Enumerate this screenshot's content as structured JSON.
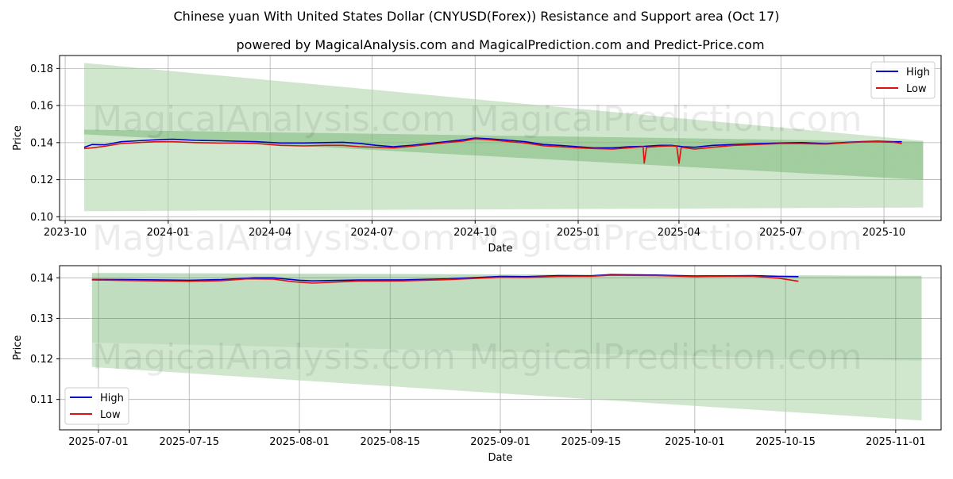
{
  "title": "Chinese yuan With United States Dollar (CNYUSD(Forex)) Resistance and Support area (Oct 17)",
  "subtitle": "powered by MagicalAnalysis.com and MagicalPrediction.com and Predict-Price.com",
  "watermarks": [
    "MagicalAnalysis.com",
    "MagicalPrediction.com"
  ],
  "colors": {
    "high": "#0000cc",
    "low": "#dd1111",
    "band": "#4a9e48",
    "outer": "#a9d3a5"
  },
  "chart_data": [
    {
      "type": "line",
      "xlabel": "Date",
      "ylabel": "Price",
      "legend_position": "top-right",
      "grid": true,
      "x_range": [
        "2023-09-26",
        "2025-11-21"
      ],
      "ylim": [
        0.098,
        0.187
      ],
      "x_ticks": [
        {
          "date": "2023-10-01",
          "label": "2023-10"
        },
        {
          "date": "2024-01-01",
          "label": "2024-01"
        },
        {
          "date": "2024-04-01",
          "label": "2024-04"
        },
        {
          "date": "2024-07-01",
          "label": "2024-07"
        },
        {
          "date": "2024-10-01",
          "label": "2024-10"
        },
        {
          "date": "2025-01-01",
          "label": "2025-01"
        },
        {
          "date": "2025-04-01",
          "label": "2025-04"
        },
        {
          "date": "2025-07-01",
          "label": "2025-07"
        },
        {
          "date": "2025-10-01",
          "label": "2025-10"
        }
      ],
      "y_ticks": [
        0.1,
        0.12,
        0.14,
        0.16,
        0.18
      ],
      "y_tick_labels": [
        "0.10",
        "0.12",
        "0.14",
        "0.16",
        "0.18"
      ],
      "series": [
        {
          "name": "High",
          "color": "#0000cc",
          "dates": [
            "2023-10-18",
            "2023-10-25",
            "2023-11-05",
            "2023-11-20",
            "2023-12-05",
            "2023-12-20",
            "2024-01-05",
            "2024-01-25",
            "2024-02-15",
            "2024-03-01",
            "2024-03-20",
            "2024-04-10",
            "2024-05-01",
            "2024-05-20",
            "2024-06-05",
            "2024-06-20",
            "2024-07-05",
            "2024-07-20",
            "2024-08-05",
            "2024-08-20",
            "2024-09-05",
            "2024-09-20",
            "2024-10-01",
            "2024-10-15",
            "2024-11-01",
            "2024-11-15",
            "2024-12-01",
            "2024-12-15",
            "2025-01-01",
            "2025-01-15",
            "2025-02-01",
            "2025-02-15",
            "2025-03-01",
            "2025-03-15",
            "2025-03-25",
            "2025-04-05",
            "2025-04-15",
            "2025-05-01",
            "2025-05-20",
            "2025-06-10",
            "2025-07-01",
            "2025-07-20",
            "2025-08-10",
            "2025-08-25",
            "2025-09-10",
            "2025-09-25",
            "2025-10-10",
            "2025-10-17"
          ],
          "values": [
            0.1375,
            0.139,
            0.1388,
            0.1405,
            0.141,
            0.1415,
            0.1418,
            0.1412,
            0.141,
            0.1408,
            0.1405,
            0.1398,
            0.1398,
            0.14,
            0.1402,
            0.1396,
            0.1385,
            0.1378,
            0.1385,
            0.1395,
            0.1405,
            0.1415,
            0.1425,
            0.142,
            0.1412,
            0.1405,
            0.139,
            0.1385,
            0.1378,
            0.1372,
            0.1372,
            0.1378,
            0.138,
            0.1385,
            0.1385,
            0.1378,
            0.1375,
            0.1385,
            0.139,
            0.1395,
            0.1398,
            0.14,
            0.1395,
            0.14,
            0.1405,
            0.1408,
            0.1405,
            0.1405
          ]
        },
        {
          "name": "Low",
          "color": "#dd1111",
          "dates": [
            "2023-10-18",
            "2023-10-25",
            "2023-11-05",
            "2023-11-20",
            "2023-12-05",
            "2023-12-20",
            "2024-01-05",
            "2024-01-25",
            "2024-02-15",
            "2024-03-01",
            "2024-03-20",
            "2024-04-10",
            "2024-05-01",
            "2024-05-20",
            "2024-06-05",
            "2024-06-20",
            "2024-07-05",
            "2024-07-20",
            "2024-08-05",
            "2024-08-20",
            "2024-09-05",
            "2024-09-20",
            "2024-10-01",
            "2024-10-15",
            "2024-11-01",
            "2024-11-15",
            "2024-12-01",
            "2024-12-15",
            "2025-01-01",
            "2025-01-15",
            "2025-02-01",
            "2025-02-15",
            "2025-02-28",
            "2025-03-01",
            "2025-03-03",
            "2025-03-15",
            "2025-03-25",
            "2025-03-30",
            "2025-04-01",
            "2025-04-03",
            "2025-04-15",
            "2025-05-01",
            "2025-05-20",
            "2025-06-10",
            "2025-07-01",
            "2025-07-20",
            "2025-08-10",
            "2025-08-25",
            "2025-09-10",
            "2025-09-25",
            "2025-10-10",
            "2025-10-17"
          ],
          "values": [
            0.1368,
            0.1372,
            0.138,
            0.1395,
            0.14,
            0.1405,
            0.1405,
            0.14,
            0.1398,
            0.1398,
            0.1395,
            0.1385,
            0.1382,
            0.1385,
            0.1385,
            0.1378,
            0.1375,
            0.1372,
            0.138,
            0.139,
            0.14,
            0.1408,
            0.142,
            0.1415,
            0.1405,
            0.1398,
            0.1383,
            0.1378,
            0.1372,
            0.1368,
            0.1365,
            0.1372,
            0.1378,
            0.129,
            0.1375,
            0.138,
            0.1382,
            0.138,
            0.1288,
            0.1375,
            0.1365,
            0.1375,
            0.1385,
            0.139,
            0.1395,
            0.1395,
            0.1392,
            0.1398,
            0.1403,
            0.1405,
            0.1402,
            0.1395
          ]
        }
      ],
      "support_resistance_bands": {
        "start_date": "2023-10-18",
        "end_date": "2025-11-05",
        "dark": {
          "start": [
            0.1445,
            0.147
          ],
          "end": [
            0.12,
            0.1405
          ]
        },
        "light": {
          "start": [
            0.103,
            0.183
          ],
          "end": [
            0.105,
            0.141
          ]
        }
      }
    },
    {
      "type": "line",
      "xlabel": "Date",
      "ylabel": "Price",
      "legend_position": "bottom-left",
      "grid": true,
      "x_range": [
        "2025-06-25",
        "2025-11-08"
      ],
      "ylim": [
        0.1025,
        0.143
      ],
      "x_ticks": [
        {
          "date": "2025-07-01",
          "label": "2025-07-01"
        },
        {
          "date": "2025-07-15",
          "label": "2025-07-15"
        },
        {
          "date": "2025-08-01",
          "label": "2025-08-01"
        },
        {
          "date": "2025-08-15",
          "label": "2025-08-15"
        },
        {
          "date": "2025-09-01",
          "label": "2025-09-01"
        },
        {
          "date": "2025-09-15",
          "label": "2025-09-15"
        },
        {
          "date": "2025-10-01",
          "label": "2025-10-01"
        },
        {
          "date": "2025-10-15",
          "label": "2025-10-15"
        },
        {
          "date": "2025-11-01",
          "label": "2025-11-01"
        }
      ],
      "y_ticks": [
        0.11,
        0.12,
        0.13,
        0.14
      ],
      "y_tick_labels": [
        "0.11",
        "0.12",
        "0.13",
        "0.14"
      ],
      "series": [
        {
          "name": "High",
          "color": "#0000cc",
          "dates": [
            "2025-06-30",
            "2025-07-05",
            "2025-07-10",
            "2025-07-15",
            "2025-07-20",
            "2025-07-25",
            "2025-07-28",
            "2025-08-01",
            "2025-08-03",
            "2025-08-10",
            "2025-08-17",
            "2025-08-24",
            "2025-08-28",
            "2025-09-01",
            "2025-09-05",
            "2025-09-10",
            "2025-09-15",
            "2025-09-18",
            "2025-09-25",
            "2025-10-01",
            "2025-10-06",
            "2025-10-10",
            "2025-10-14",
            "2025-10-17"
          ],
          "values": [
            0.1396,
            0.13955,
            0.1395,
            0.1394,
            0.13955,
            0.14,
            0.14,
            0.1394,
            0.13925,
            0.13945,
            0.1395,
            0.13975,
            0.14005,
            0.14035,
            0.1403,
            0.14055,
            0.1405,
            0.1408,
            0.1407,
            0.14045,
            0.1405,
            0.14055,
            0.14035,
            0.1403
          ]
        },
        {
          "name": "Low",
          "color": "#dd1111",
          "dates": [
            "2025-06-30",
            "2025-07-05",
            "2025-07-10",
            "2025-07-15",
            "2025-07-20",
            "2025-07-24",
            "2025-07-28",
            "2025-07-31",
            "2025-08-03",
            "2025-08-10",
            "2025-08-17",
            "2025-08-24",
            "2025-08-28",
            "2025-09-01",
            "2025-09-05",
            "2025-09-10",
            "2025-09-15",
            "2025-09-18",
            "2025-09-25",
            "2025-10-01",
            "2025-10-06",
            "2025-10-10",
            "2025-10-14",
            "2025-10-17"
          ],
          "values": [
            0.1395,
            0.13935,
            0.13925,
            0.13915,
            0.1393,
            0.13975,
            0.1397,
            0.13905,
            0.1387,
            0.1392,
            0.13925,
            0.13955,
            0.13985,
            0.14015,
            0.1401,
            0.14035,
            0.1404,
            0.14065,
            0.14055,
            0.1403,
            0.1404,
            0.1404,
            0.1399,
            0.13915
          ]
        }
      ],
      "support_resistance_bands": {
        "start_date": "2025-06-30",
        "end_date": "2025-11-05",
        "dark": {
          "start": [
            0.124,
            0.1412
          ],
          "end": [
            0.1195,
            0.1405
          ]
        },
        "light": {
          "start": [
            0.118,
            0.124
          ],
          "end": [
            0.1048,
            0.1195
          ]
        }
      }
    }
  ]
}
